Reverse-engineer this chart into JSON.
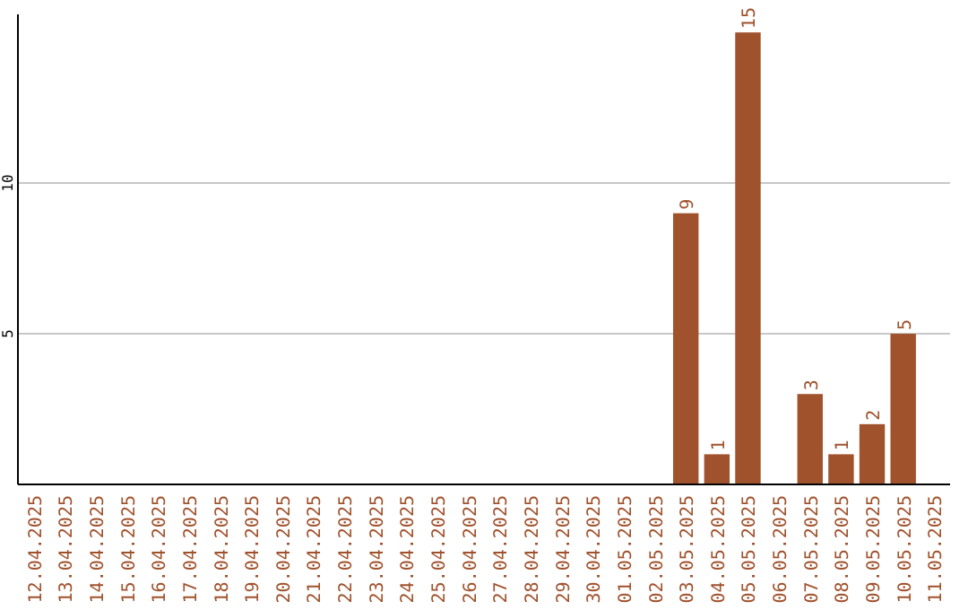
{
  "chart_data": {
    "type": "bar",
    "categories": [
      "12.04.2025",
      "13.04.2025",
      "14.04.2025",
      "15.04.2025",
      "16.04.2025",
      "17.04.2025",
      "18.04.2025",
      "19.04.2025",
      "20.04.2025",
      "21.04.2025",
      "22.04.2025",
      "23.04.2025",
      "24.04.2025",
      "25.04.2025",
      "26.04.2025",
      "27.04.2025",
      "28.04.2025",
      "29.04.2025",
      "30.04.2025",
      "01.05.2025",
      "02.05.2025",
      "03.05.2025",
      "04.05.2025",
      "05.05.2025",
      "06.05.2025",
      "07.05.2025",
      "08.05.2025",
      "09.05.2025",
      "10.05.2025",
      "11.05.2025"
    ],
    "values": [
      0,
      0,
      0,
      0,
      0,
      0,
      0,
      0,
      0,
      0,
      0,
      0,
      0,
      0,
      0,
      0,
      0,
      0,
      0,
      0,
      0,
      9,
      1,
      15,
      0,
      3,
      1,
      2,
      5,
      0
    ],
    "value_labels": [
      null,
      null,
      null,
      null,
      null,
      null,
      null,
      null,
      null,
      null,
      null,
      null,
      null,
      null,
      null,
      null,
      null,
      null,
      null,
      null,
      null,
      "9",
      "1",
      "15",
      null,
      "3",
      "1",
      "2",
      "5",
      null
    ],
    "color": "#a0522d",
    "ylim": [
      0,
      15.6
    ],
    "yticks": [
      5,
      10
    ],
    "grid": "y"
  }
}
